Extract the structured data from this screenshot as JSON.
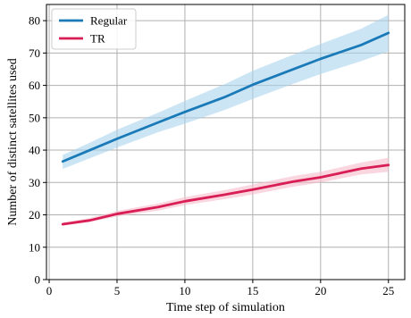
{
  "chart_data": {
    "type": "line",
    "xlabel": "Time step of simulation",
    "ylabel": "Number of distinct satellites used",
    "xlim": [
      -0.2,
      26.2
    ],
    "ylim": [
      0,
      85
    ],
    "xticks": [
      0,
      5,
      10,
      15,
      20,
      25
    ],
    "yticks": [
      0,
      10,
      20,
      30,
      40,
      50,
      60,
      70,
      80
    ],
    "grid": true,
    "legend_position": "top-left",
    "x": [
      1,
      3,
      5,
      8,
      10,
      13,
      15,
      18,
      20,
      23,
      25
    ],
    "series": [
      {
        "name": "Regular",
        "color": "#1a7ab8",
        "band_color": "#a9d3ef",
        "values": [
          36.5,
          40,
          43.5,
          48.5,
          51.8,
          56.5,
          60.2,
          65,
          68.2,
          72.5,
          76.2
        ],
        "lower": [
          34.2,
          37.5,
          40.8,
          45.5,
          48.2,
          52.5,
          55.8,
          60.5,
          63.5,
          67.5,
          70.5
        ],
        "upper": [
          38.5,
          42.3,
          46.3,
          51.5,
          55.2,
          60.5,
          64.5,
          69.5,
          72.8,
          77.5,
          81.8
        ]
      },
      {
        "name": "TR",
        "color": "#d81e55",
        "band_color": "#f6bccb",
        "values": [
          17.1,
          18.3,
          20.3,
          22.4,
          24.2,
          26.3,
          27.8,
          30.3,
          31.6,
          34.3,
          35.4
        ],
        "lower": [
          16.7,
          17.8,
          19.5,
          21.3,
          23.0,
          24.9,
          26.3,
          28.7,
          30.0,
          32.5,
          33.3
        ],
        "upper": [
          17.6,
          19.0,
          21.2,
          23.5,
          25.5,
          27.7,
          29.4,
          32.0,
          33.3,
          36.2,
          37.6
        ]
      }
    ]
  }
}
